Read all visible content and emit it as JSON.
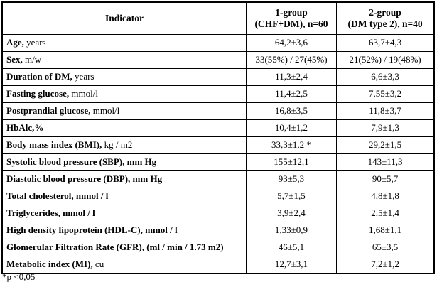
{
  "table": {
    "columns": {
      "indicator": "Indicator",
      "group1": [
        "1-group",
        "(CHF+DM), n=60"
      ],
      "group2": [
        "2-group",
        "(DM type 2), n=40"
      ]
    },
    "rows": [
      {
        "bold": "Age,",
        "rest": " years",
        "g1": "64,2±3,6",
        "g2": "63,7±4,3"
      },
      {
        "bold": "Sex,",
        "rest": " m/w",
        "g1": "33(55%) / 27(45%)",
        "g2": "21(52%) / 19(48%)"
      },
      {
        "bold": "Duration of DM,",
        "rest": " years",
        "g1": "11,3±2,4",
        "g2": "6,6±3,3"
      },
      {
        "bold": "Fasting glucose,",
        "rest": " mmol/l",
        "g1": "11,4±2,5",
        "g2": "7,55±3,2"
      },
      {
        "bold": "Postprandial glucose,",
        "rest": " mmol/l",
        "g1": "16,8±3,5",
        "g2": "11,8±3,7"
      },
      {
        "bold": "HbAlc,%",
        "rest": "",
        "g1": "10,4±1,2",
        "g2": "7,9±1,3"
      },
      {
        "bold": "Body mass index (BMI),",
        "rest": " kg / m2",
        "g1": "33,3±1,2 *",
        "g2": "29,2±1,5"
      },
      {
        "bold": "Systolic blood pressure (SBP), mm Hg",
        "rest": "",
        "g1": "155±12,1",
        "g2": "143±11,3"
      },
      {
        "bold": "Diastolic blood pressure (DBP), mm Hg",
        "rest": "",
        "g1": "93±5,3",
        "g2": "90±5,7"
      },
      {
        "bold": "Total cholesterol, mmol / l",
        "rest": "",
        "g1": "5,7±1,5",
        "g2": "4,8±1,8"
      },
      {
        "bold": "Triglycerides, mmol / l",
        "rest": "",
        "g1": "3,9±2,4",
        "g2": "2,5±1,4"
      },
      {
        "bold": "High density lipoprotein (HDL-C), mmol / l",
        "rest": "",
        "g1": "1,33±0,9",
        "g2": "1,68±1,1"
      },
      {
        "bold": "Glomerular Filtration Rate (GFR), (ml / min / 1.73 m2)",
        "rest": "",
        "g1": "46±5,1",
        "g2": "65±3,5"
      },
      {
        "bold": "Metabolic index (MI),",
        "rest": " cu",
        "g1": "12,7±3,1",
        "g2": "7,2±1,2"
      }
    ],
    "footnote": "*p <0,05"
  }
}
